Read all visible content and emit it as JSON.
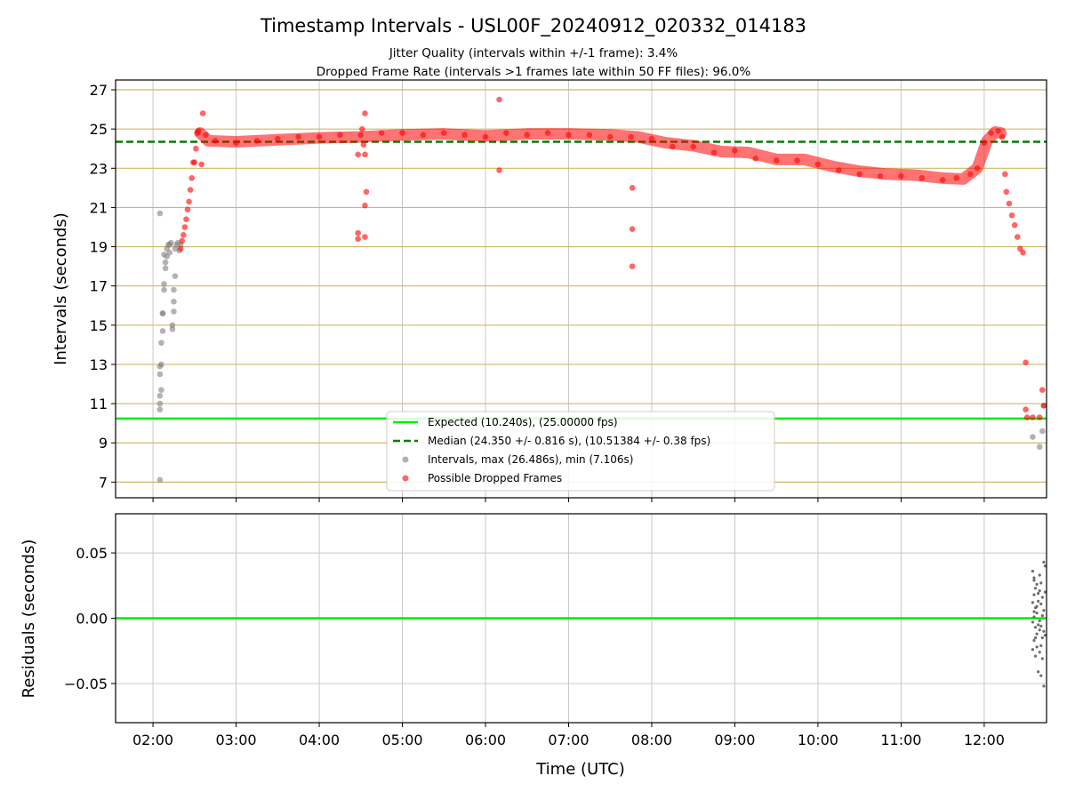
{
  "chart_data": [
    {
      "type": "scatter",
      "title": "Timestamp Intervals - USL00F_20240912_020332_014183",
      "subtitle_lines": [
        "Jitter Quality (intervals within +/-1 frame): 3.4%",
        "Dropped Frame Rate (intervals >1 frames late within 50 FF files): 96.0%"
      ],
      "xlabel": "",
      "ylabel": "Intervals (seconds)",
      "x_is_time": true,
      "xlim": [
        "01:33",
        "12:45"
      ],
      "ylim": [
        6.2,
        27.5
      ],
      "yticks": [
        7,
        9,
        11,
        13,
        15,
        17,
        19,
        21,
        23,
        25,
        27
      ],
      "grid": true,
      "colors": {
        "expected": "#00ee00",
        "median": "#008000",
        "intervals": "#808080",
        "dropped": "#ff0000",
        "hgrid": "#d2b86a",
        "vgrid": "#c8c8c8"
      },
      "legend": {
        "position": "lower-center",
        "entries": [
          "Expected (10.240s), (25.00000 fps)",
          "Median (24.350 +/- 0.816 s), (10.51384 +/- 0.38 fps)",
          "Intervals, max (26.486s), min (7.106s)",
          "Possible Dropped Frames"
        ]
      },
      "series": [
        {
          "name": "Expected (10.240s), (25.00000 fps)",
          "kind": "hline",
          "y": 10.24
        },
        {
          "name": "Median (24.350 +/- 0.816 s), (10.51384 +/- 0.38 fps)",
          "kind": "hline-dashed",
          "y": 24.35
        },
        {
          "name": "Intervals, max (26.486s), min (7.106s)",
          "kind": "scatter",
          "points": [
            [
              "02:05",
              7.11
            ],
            [
              "02:05",
              10.7
            ],
            [
              "02:05",
              11.0
            ],
            [
              "02:05",
              11.4
            ],
            [
              "02:06",
              11.7
            ],
            [
              "02:05",
              12.5
            ],
            [
              "02:05",
              12.9
            ],
            [
              "02:06",
              13.0
            ],
            [
              "02:05",
              20.7
            ],
            [
              "02:06",
              14.1
            ],
            [
              "02:07",
              14.7
            ],
            [
              "02:07",
              15.6
            ],
            [
              "02:08",
              16.8
            ],
            [
              "02:08",
              17.1
            ],
            [
              "02:09",
              17.9
            ],
            [
              "02:09",
              18.2
            ],
            [
              "02:10",
              18.5
            ],
            [
              "02:10",
              18.9
            ],
            [
              "02:11",
              19.1
            ],
            [
              "02:12",
              18.7
            ],
            [
              "02:12",
              19.1
            ],
            [
              "02:13",
              19.2
            ],
            [
              "02:14",
              14.8
            ],
            [
              "02:14",
              15.0
            ],
            [
              "02:15",
              15.7
            ],
            [
              "02:15",
              16.2
            ],
            [
              "02:15",
              16.8
            ],
            [
              "02:16",
              17.5
            ],
            [
              "02:16",
              18.9
            ],
            [
              "02:17",
              19.1
            ],
            [
              "02:18",
              19.2
            ],
            [
              "02:19",
              18.8
            ],
            [
              "02:20",
              19.1
            ],
            [
              "02:07",
              15.6
            ],
            [
              "02:08",
              18.6
            ],
            [
              "12:35",
              9.3
            ],
            [
              "12:42",
              9.6
            ],
            [
              "12:40",
              8.8
            ],
            [
              "12:43",
              10.9
            ]
          ]
        },
        {
          "name": "Possible Dropped Frames",
          "kind": "scatter",
          "points": [
            [
              "02:20",
              18.9
            ],
            [
              "02:21",
              19.3
            ],
            [
              "02:22",
              19.6
            ],
            [
              "02:23",
              20.0
            ],
            [
              "02:24",
              20.4
            ],
            [
              "02:25",
              20.9
            ],
            [
              "02:26",
              21.3
            ],
            [
              "02:27",
              21.9
            ],
            [
              "02:28",
              22.5
            ],
            [
              "02:29",
              23.3
            ],
            [
              "02:30",
              23.3
            ],
            [
              "02:31",
              24.0
            ],
            [
              "02:32",
              24.8
            ],
            [
              "02:33",
              24.9
            ],
            [
              "02:35",
              23.2
            ],
            [
              "02:36",
              25.8
            ],
            [
              "02:38",
              24.7
            ],
            [
              "02:45",
              24.4
            ],
            [
              "03:00",
              24.3
            ],
            [
              "03:15",
              24.4
            ],
            [
              "03:30",
              24.5
            ],
            [
              "03:45",
              24.6
            ],
            [
              "04:00",
              24.6
            ],
            [
              "04:15",
              24.7
            ],
            [
              "04:28",
              23.7
            ],
            [
              "04:28",
              19.7
            ],
            [
              "04:28",
              19.4
            ],
            [
              "04:30",
              24.7
            ],
            [
              "04:31",
              25.0
            ],
            [
              "04:32",
              24.2
            ],
            [
              "04:33",
              23.7
            ],
            [
              "04:33",
              21.1
            ],
            [
              "04:34",
              21.8
            ],
            [
              "04:33",
              19.5
            ],
            [
              "04:33",
              25.8
            ],
            [
              "04:45",
              24.8
            ],
            [
              "05:00",
              24.8
            ],
            [
              "05:15",
              24.7
            ],
            [
              "05:30",
              24.8
            ],
            [
              "05:45",
              24.7
            ],
            [
              "06:00",
              24.6
            ],
            [
              "06:10",
              26.5
            ],
            [
              "06:10",
              22.9
            ],
            [
              "06:15",
              24.8
            ],
            [
              "06:30",
              24.7
            ],
            [
              "06:45",
              24.8
            ],
            [
              "07:00",
              24.7
            ],
            [
              "07:15",
              24.7
            ],
            [
              "07:30",
              24.6
            ],
            [
              "07:45",
              24.6
            ],
            [
              "07:46",
              22.0
            ],
            [
              "07:46",
              19.9
            ],
            [
              "07:46",
              18.0
            ],
            [
              "08:00",
              24.5
            ],
            [
              "08:15",
              24.1
            ],
            [
              "08:30",
              24.1
            ],
            [
              "08:45",
              23.8
            ],
            [
              "09:00",
              23.9
            ],
            [
              "09:15",
              23.5
            ],
            [
              "09:30",
              23.4
            ],
            [
              "09:45",
              23.4
            ],
            [
              "10:00",
              23.2
            ],
            [
              "10:15",
              22.9
            ],
            [
              "10:30",
              22.7
            ],
            [
              "10:45",
              22.6
            ],
            [
              "11:00",
              22.6
            ],
            [
              "11:15",
              22.5
            ],
            [
              "11:30",
              22.4
            ],
            [
              "11:40",
              22.5
            ],
            [
              "11:50",
              22.7
            ],
            [
              "11:55",
              23.0
            ],
            [
              "12:00",
              24.3
            ],
            [
              "12:05",
              24.8
            ],
            [
              "12:10",
              24.9
            ],
            [
              "12:13",
              24.6
            ],
            [
              "12:15",
              22.7
            ],
            [
              "12:16",
              21.8
            ],
            [
              "12:18",
              21.2
            ],
            [
              "12:20",
              20.6
            ],
            [
              "12:22",
              20.1
            ],
            [
              "12:24",
              19.5
            ],
            [
              "12:26",
              18.9
            ],
            [
              "12:28",
              18.7
            ],
            [
              "12:30",
              13.1
            ],
            [
              "12:30",
              10.7
            ],
            [
              "12:31",
              10.3
            ],
            [
              "12:35",
              10.3
            ],
            [
              "12:40",
              10.3
            ],
            [
              "12:42",
              11.7
            ],
            [
              "12:43",
              10.9
            ]
          ]
        }
      ],
      "trend": [
        [
          "02:34",
          24.8
        ],
        [
          "02:40",
          24.4
        ],
        [
          "03:00",
          24.35
        ],
        [
          "03:30",
          24.45
        ],
        [
          "04:00",
          24.55
        ],
        [
          "04:30",
          24.6
        ],
        [
          "05:00",
          24.7
        ],
        [
          "05:30",
          24.75
        ],
        [
          "06:00",
          24.65
        ],
        [
          "06:30",
          24.75
        ],
        [
          "07:00",
          24.75
        ],
        [
          "07:30",
          24.7
        ],
        [
          "07:50",
          24.6
        ],
        [
          "08:10",
          24.3
        ],
        [
          "08:30",
          24.15
        ],
        [
          "08:50",
          23.85
        ],
        [
          "09:10",
          23.8
        ],
        [
          "09:30",
          23.45
        ],
        [
          "09:50",
          23.45
        ],
        [
          "10:10",
          23.1
        ],
        [
          "10:30",
          22.85
        ],
        [
          "10:50",
          22.7
        ],
        [
          "11:10",
          22.65
        ],
        [
          "11:30",
          22.5
        ],
        [
          "11:45",
          22.45
        ],
        [
          "11:55",
          23.0
        ],
        [
          "12:02",
          24.4
        ],
        [
          "12:08",
          24.85
        ],
        [
          "12:12",
          24.8
        ]
      ]
    },
    {
      "type": "scatter",
      "xlabel": "Time (UTC)",
      "ylabel": "Residuals (seconds)",
      "x_is_time": true,
      "xlim": [
        "01:33",
        "12:45"
      ],
      "ylim": [
        -0.08,
        0.08
      ],
      "yticks": [
        "−0.05",
        "0.00",
        "0.05"
      ],
      "ytick_values": [
        -0.05,
        0.0,
        0.05
      ],
      "xticks": [
        "02:00",
        "03:00",
        "04:00",
        "05:00",
        "06:00",
        "07:00",
        "08:00",
        "09:00",
        "10:00",
        "11:00",
        "12:00"
      ],
      "grid": true,
      "series": [
        {
          "name": "",
          "kind": "hline",
          "y": 0.0
        },
        {
          "name": "",
          "kind": "scatter",
          "points": [
            [
              "12:35",
              0.036
            ],
            [
              "12:36",
              0.029
            ],
            [
              "12:37",
              0.023
            ],
            [
              "12:36",
              0.018
            ],
            [
              "12:35",
              0.012
            ],
            [
              "12:37",
              0.008
            ],
            [
              "12:38",
              0.004
            ],
            [
              "12:36",
              0.001
            ],
            [
              "12:35",
              -0.003
            ],
            [
              "12:37",
              -0.007
            ],
            [
              "12:38",
              -0.012
            ],
            [
              "12:36",
              -0.017
            ],
            [
              "12:35",
              -0.024
            ],
            [
              "12:37",
              -0.029
            ],
            [
              "12:39",
              -0.041
            ],
            [
              "12:40",
              0.033
            ],
            [
              "12:41",
              0.027
            ],
            [
              "12:40",
              0.021
            ],
            [
              "12:42",
              0.016
            ],
            [
              "12:41",
              0.011
            ],
            [
              "12:43",
              0.006
            ],
            [
              "12:42",
              0.002
            ],
            [
              "12:40",
              -0.002
            ],
            [
              "12:41",
              -0.006
            ],
            [
              "12:43",
              -0.01
            ],
            [
              "12:42",
              -0.015
            ],
            [
              "12:41",
              -0.021
            ],
            [
              "12:40",
              -0.026
            ],
            [
              "12:42",
              -0.031
            ],
            [
              "12:41",
              -0.044
            ],
            [
              "12:43",
              0.043
            ],
            [
              "12:44",
              0.04
            ],
            [
              "12:44",
              0.02
            ],
            [
              "12:44",
              -0.013
            ],
            [
              "12:43",
              -0.052
            ],
            [
              "12:36",
              0.031
            ],
            [
              "12:38",
              0.026
            ],
            [
              "12:39",
              0.019
            ],
            [
              "12:39",
              0.013
            ],
            [
              "12:38",
              0.009
            ],
            [
              "12:39",
              -0.005
            ],
            [
              "12:37",
              -0.015
            ],
            [
              "12:38",
              -0.022
            ],
            [
              "12:40",
              -0.009
            ],
            [
              "12:36",
              0.005
            ]
          ]
        }
      ]
    }
  ]
}
